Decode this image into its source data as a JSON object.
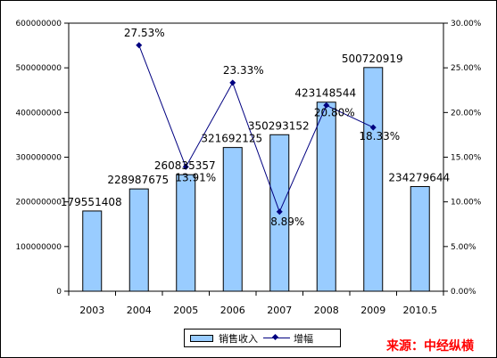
{
  "chart_data": {
    "type": "bar",
    "categories": [
      "2003",
      "2004",
      "2005",
      "2006",
      "2007",
      "2008",
      "2009",
      "2010.5"
    ],
    "series": [
      {
        "name": "销售收入",
        "type": "bar",
        "axis": "left",
        "color": "#99ccff",
        "values": [
          179551408,
          228987675,
          260835357,
          321692125,
          350293152,
          423148544,
          500720919,
          234279644
        ],
        "labels": [
          "179551408",
          "228987675",
          "260835357",
          "321692125",
          "350293152",
          "423148544",
          "500720919",
          "234279644"
        ]
      },
      {
        "name": "增幅",
        "type": "line",
        "axis": "right",
        "color": "#000080",
        "values": [
          null,
          27.53,
          13.91,
          23.33,
          8.89,
          20.8,
          18.33,
          null
        ],
        "labels": [
          "",
          "27.53%",
          "13.91%",
          "23.33%",
          "8.89%",
          "20.80%",
          "18.33%",
          ""
        ]
      }
    ],
    "y_left": {
      "ylim": [
        0,
        600000000
      ],
      "ticks": [
        "0",
        "100000000",
        "200000000",
        "300000000",
        "400000000",
        "500000000",
        "600000000"
      ]
    },
    "y_right": {
      "ylim": [
        0,
        30
      ],
      "ticks": [
        "0.00%",
        "5.00%",
        "10.00%",
        "15.00%",
        "20.00%",
        "25.00%",
        "30.00%"
      ]
    },
    "grid": false,
    "legend_position": "bottom"
  },
  "source_text": "来源：中经纵横"
}
